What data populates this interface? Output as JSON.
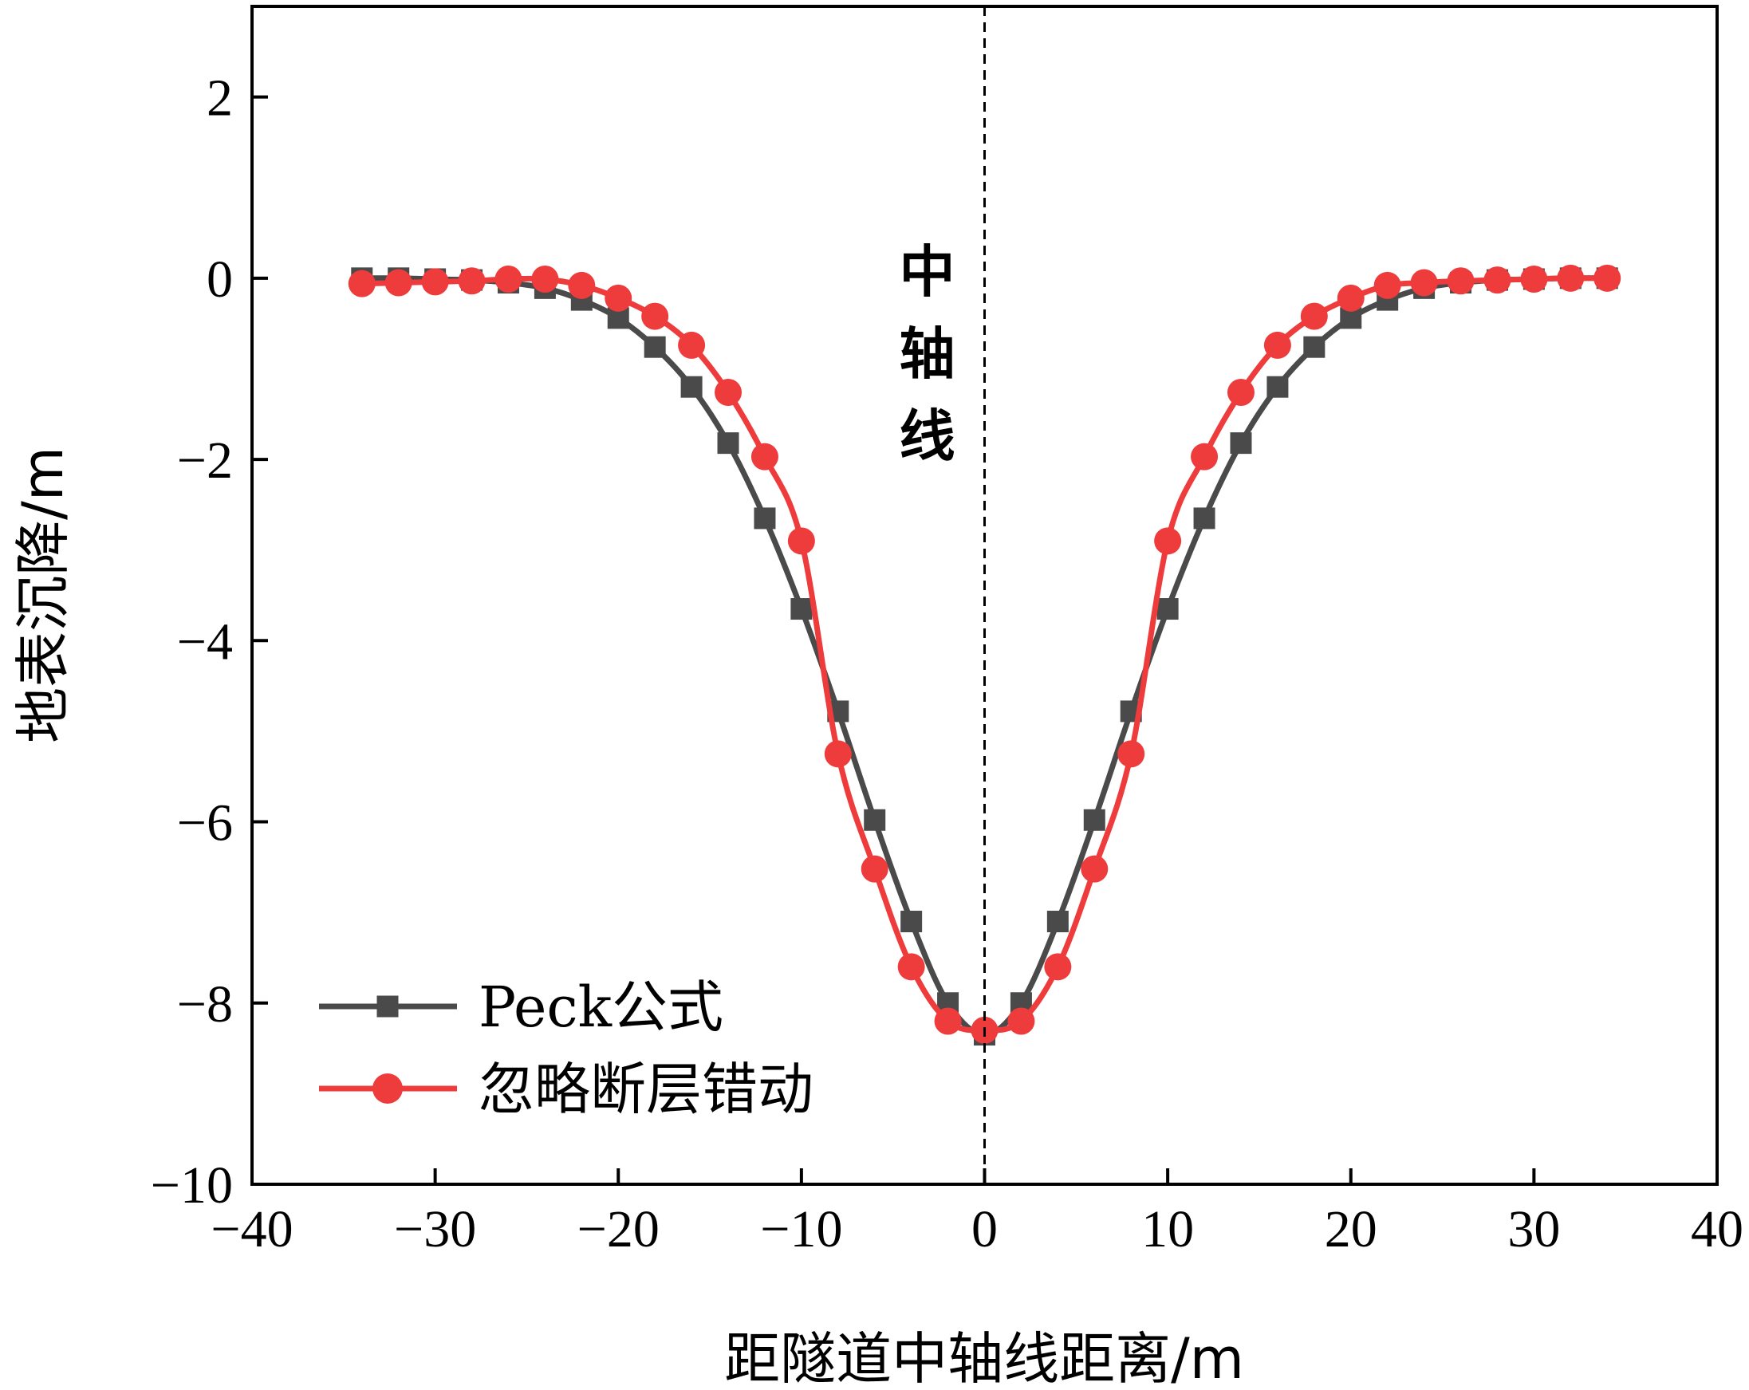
{
  "chart_data": {
    "type": "line",
    "xlabel": "距隧道中轴线距离/m",
    "ylabel": "地表沉降/m",
    "xlim": [
      -40,
      40
    ],
    "ylim": [
      -10,
      3
    ],
    "xticks": [
      -40,
      -30,
      -20,
      -10,
      0,
      10,
      20,
      30,
      40
    ],
    "yticks": [
      -10,
      -8,
      -6,
      -4,
      -2,
      0,
      2
    ],
    "grid": false,
    "legend_position": "bottom-left",
    "annotation": {
      "text": "中轴线",
      "x": 0
    },
    "colors": {
      "peck": "#4a4a4a",
      "ignore": "#ee3b3b"
    },
    "series": [
      {
        "name": "Peck公式",
        "marker": "square",
        "color": "#4a4a4a",
        "x": [
          -34,
          -32,
          -30,
          -28,
          -26,
          -24,
          -22,
          -20,
          -18,
          -16,
          -14,
          -12,
          -10,
          -8,
          -6,
          -4,
          -2,
          0,
          2,
          4,
          6,
          8,
          10,
          12,
          14,
          16,
          18,
          20,
          22,
          24,
          26,
          28,
          30,
          32,
          34
        ],
        "y": [
          0,
          0,
          -0.01,
          -0.02,
          -0.05,
          -0.11,
          -0.24,
          -0.44,
          -0.76,
          -1.2,
          -1.82,
          -2.65,
          -3.65,
          -4.78,
          -5.98,
          -7.1,
          -8.0,
          -8.35,
          -8.0,
          -7.1,
          -5.98,
          -4.78,
          -3.65,
          -2.65,
          -1.82,
          -1.2,
          -0.76,
          -0.44,
          -0.24,
          -0.11,
          -0.05,
          -0.02,
          -0.01,
          0,
          0
        ]
      },
      {
        "name": "忽略断层错动",
        "marker": "circle",
        "color": "#ee3b3b",
        "x": [
          -34,
          -32,
          -30,
          -28,
          -26,
          -24,
          -22,
          -20,
          -18,
          -16,
          -14,
          -12,
          -10,
          -8,
          -6,
          -4,
          -2,
          0,
          2,
          4,
          6,
          8,
          10,
          12,
          14,
          16,
          18,
          20,
          22,
          24,
          26,
          28,
          30,
          32,
          34
        ],
        "y": [
          -0.06,
          -0.05,
          -0.04,
          -0.03,
          -0.01,
          -0.01,
          -0.08,
          -0.22,
          -0.42,
          -0.74,
          -1.26,
          -1.97,
          -2.9,
          -5.25,
          -6.52,
          -7.6,
          -8.2,
          -8.3,
          -8.2,
          -7.6,
          -6.52,
          -5.25,
          -2.9,
          -1.97,
          -1.26,
          -0.74,
          -0.42,
          -0.22,
          -0.08,
          -0.05,
          -0.03,
          -0.02,
          -0.01,
          0,
          0
        ]
      }
    ]
  }
}
